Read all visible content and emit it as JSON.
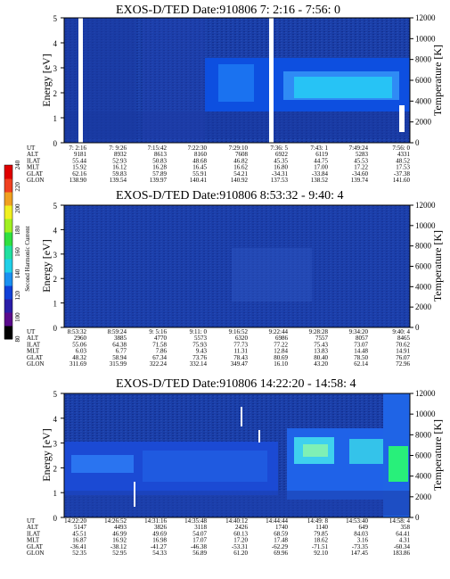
{
  "chart_data": [
    {
      "type": "heatmap",
      "title": "EXOS-D/TED   Date:910806  7: 2:16 - 7:56: 0",
      "ylabel": "Energy [eV]",
      "ylabel_right": "Temperature [K]",
      "ylim": [
        0,
        5
      ],
      "yticks": [
        "0",
        "1",
        "2",
        "3",
        "4",
        "5"
      ],
      "ylim_right": [
        0,
        12000
      ],
      "yticks_right": [
        "0",
        "2000",
        "4000",
        "6000",
        "8000",
        "10000",
        "12000"
      ],
      "table": {
        "row_labels": [
          "UT",
          "ALT",
          "ILAT",
          "MLT",
          "GLAT",
          "GLON"
        ],
        "columns": [
          [
            "7: 2:16",
            "9181",
            "55.44",
            "15.92",
            "62.16",
            "138.90"
          ],
          [
            "7: 9:26",
            "8932",
            "52.93",
            "16.12",
            "59.83",
            "139.54"
          ],
          [
            "7:15:42",
            "8613",
            "50.83",
            "16.28",
            "57.89",
            "139.97"
          ],
          [
            "7:22:30",
            "8160",
            "48.68",
            "16.45",
            "55.91",
            "140.41"
          ],
          [
            "7:29:10",
            "7608",
            "46.82",
            "16.62",
            "54.21",
            "140.92"
          ],
          [
            "7:36: 5",
            "6922",
            "45.35",
            "16.80",
            "-34.31",
            "137.53"
          ],
          [
            "7:43: 1",
            "6119",
            "44.75",
            "17.00",
            "-33.84",
            "138.52"
          ],
          [
            "7:49:24",
            "5283",
            "45.53",
            "17.22",
            "-34.60",
            "139.74"
          ],
          [
            "7:56: 0",
            "4331",
            "48.52",
            "17.53",
            "-37.38",
            "141.60"
          ]
        ]
      }
    },
    {
      "type": "heatmap",
      "title": "EXOS-D/TED   Date:910806  8:53:32 - 9:40: 4",
      "ylabel": "Energy [eV]",
      "ylabel_right": "Temperature [K]",
      "ylim": [
        0,
        5
      ],
      "yticks": [
        "0",
        "1",
        "2",
        "3",
        "4",
        "5"
      ],
      "ylim_right": [
        0,
        12000
      ],
      "yticks_right": [
        "0",
        "2000",
        "4000",
        "6000",
        "8000",
        "10000",
        "12000"
      ],
      "colorbar": {
        "label": "Second Harmonic Current",
        "ticks": [
          "80",
          "100",
          "120",
          "140",
          "160",
          "180",
          "200",
          "220",
          "240"
        ]
      },
      "table": {
        "row_labels": [
          "UT",
          "ALT",
          "ILAT",
          "MLT",
          "GLAT",
          "GLON"
        ],
        "columns": [
          [
            "8:53:32",
            "2960",
            "55.06",
            "6.03",
            "48.32",
            "311.69"
          ],
          [
            "8:59:24",
            "3885",
            "64.38",
            "6.77",
            "58.94",
            "315.99"
          ],
          [
            "9: 5:16",
            "4770",
            "71.58",
            "7.86",
            "67.34",
            "322.24"
          ],
          [
            "9:11: 0",
            "5573",
            "75.93",
            "9.43",
            "73.76",
            "332.14"
          ],
          [
            "9:16:52",
            "6320",
            "77.73",
            "11.31",
            "78.43",
            "349.47"
          ],
          [
            "9:22:44",
            "6986",
            "77.22",
            "12.84",
            "80.69",
            "16.10"
          ],
          [
            "9:28:28",
            "7557",
            "75.43",
            "13.83",
            "80.40",
            "43.20"
          ],
          [
            "9:34:20",
            "8057",
            "73.07",
            "14.48",
            "78.50",
            "62.14"
          ],
          [
            "9:40: 4",
            "8465",
            "70.62",
            "14.91",
            "76.07",
            "72.96"
          ]
        ]
      }
    },
    {
      "type": "heatmap",
      "title": "EXOS-D/TED   Date:910806  14:22:20 - 14:58: 4",
      "ylabel": "Energy [eV]",
      "ylabel_right": "Temperature [K]",
      "ylim": [
        0,
        5
      ],
      "yticks": [
        "0",
        "1",
        "2",
        "3",
        "4",
        "5"
      ],
      "ylim_right": [
        0,
        12000
      ],
      "yticks_right": [
        "0",
        "2000",
        "4000",
        "6000",
        "8000",
        "10000",
        "12000"
      ],
      "table": {
        "row_labels": [
          "UT",
          "ALT",
          "ILAT",
          "MLT",
          "GLAT",
          "GLON"
        ],
        "columns": [
          [
            "14:22:20",
            "5147",
            "45.51",
            "16.87",
            "-36.41",
            "52.35"
          ],
          [
            "14:26:52",
            "4493",
            "46.99",
            "16.92",
            "-38.12",
            "52.95"
          ],
          [
            "14:31:16",
            "3826",
            "49.69",
            "16.98",
            "-41.27",
            "54.33"
          ],
          [
            "14:35:48",
            "3118",
            "54.07",
            "17.07",
            "-46.38",
            "56.89"
          ],
          [
            "14:40:12",
            "2426",
            "60.13",
            "17.20",
            "-53.31",
            "61.20"
          ],
          [
            "14:44:44",
            "1740",
            "68.59",
            "17.48",
            "-62.29",
            "69.96"
          ],
          [
            "14:49: 8",
            "1140",
            "79.85",
            "18.62",
            "-71.51",
            "92.10"
          ],
          [
            "14:53:40",
            "649",
            "84.03",
            "3.16",
            "-73.35",
            "147.45"
          ],
          [
            "14:58: 4",
            "358",
            "64.41",
            "4.31",
            "-60.34",
            "183.86"
          ]
        ]
      }
    }
  ]
}
